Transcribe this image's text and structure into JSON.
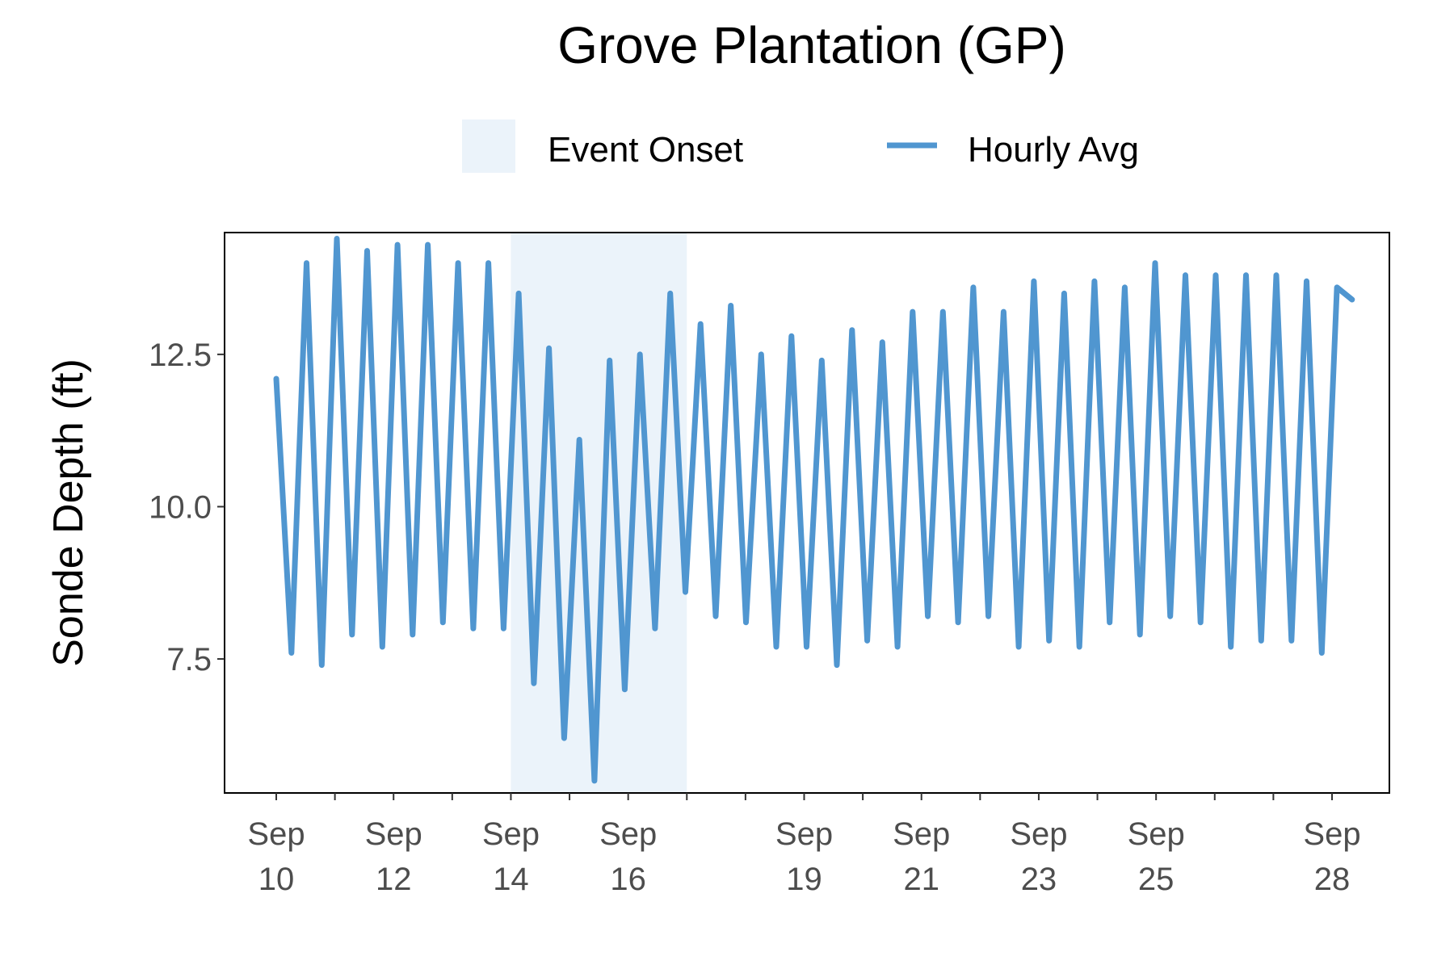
{
  "chart_data": {
    "type": "line",
    "title": "Grove Plantation (GP)",
    "xlabel": "",
    "ylabel": "Sonde Depth (ft)",
    "y_ticks": [
      "7.5",
      "10.0",
      "12.5"
    ],
    "y_tick_values": [
      7.5,
      10.0,
      12.5
    ],
    "ylim": [
      5.3,
      14.5
    ],
    "x_start": "Sep 10",
    "x_end": "Sep 28",
    "x_ticks": [
      {
        "month": "Sep",
        "day": "10",
        "date": "Sep 10"
      },
      {
        "month": "Sep",
        "day": "12",
        "date": "Sep 12"
      },
      {
        "month": "Sep",
        "day": "14",
        "date": "Sep 14"
      },
      {
        "month": "Sep",
        "day": "16",
        "date": "Sep 16"
      },
      {
        "month": "Sep",
        "day": "19",
        "date": "Sep 19"
      },
      {
        "month": "Sep",
        "day": "21",
        "date": "Sep 21"
      },
      {
        "month": "Sep",
        "day": "23",
        "date": "Sep 23"
      },
      {
        "month": "Sep",
        "day": "25",
        "date": "Sep 25"
      },
      {
        "month": "Sep",
        "day": "28",
        "date": "Sep 28"
      }
    ],
    "grid": false,
    "legend": {
      "position": "top",
      "items": [
        {
          "label": "Event Onset",
          "kind": "shaded-band",
          "color": "#ebf3fa"
        },
        {
          "label": "Hourly Avg",
          "kind": "line",
          "color": "#5096d0"
        }
      ]
    },
    "shaded_region": {
      "name": "Event Onset",
      "start": "Sep 14",
      "end": "Sep 17",
      "color": "#ebf3fa"
    },
    "series": [
      {
        "name": "Hourly Avg",
        "color": "#5096d0",
        "start": "Sep 10",
        "step_hours": 6.2,
        "values": [
          12.1,
          7.6,
          14.0,
          7.4,
          14.4,
          7.9,
          14.2,
          7.7,
          14.3,
          7.9,
          14.3,
          8.1,
          14.0,
          8.0,
          14.0,
          8.0,
          13.5,
          7.1,
          12.6,
          6.2,
          11.1,
          5.5,
          12.4,
          7.0,
          12.5,
          8.0,
          13.5,
          8.6,
          13.0,
          8.2,
          13.3,
          8.1,
          12.5,
          7.7,
          12.8,
          7.7,
          12.4,
          7.4,
          12.9,
          7.8,
          12.7,
          7.7,
          13.2,
          8.2,
          13.2,
          8.1,
          13.6,
          8.2,
          13.2,
          7.7,
          13.7,
          7.8,
          13.5,
          7.7,
          13.7,
          8.1,
          13.6,
          7.9,
          14.0,
          8.2,
          13.8,
          8.1,
          13.8,
          7.7,
          13.8,
          7.8,
          13.8,
          7.8,
          13.7,
          7.6,
          13.6,
          13.4
        ]
      }
    ]
  }
}
